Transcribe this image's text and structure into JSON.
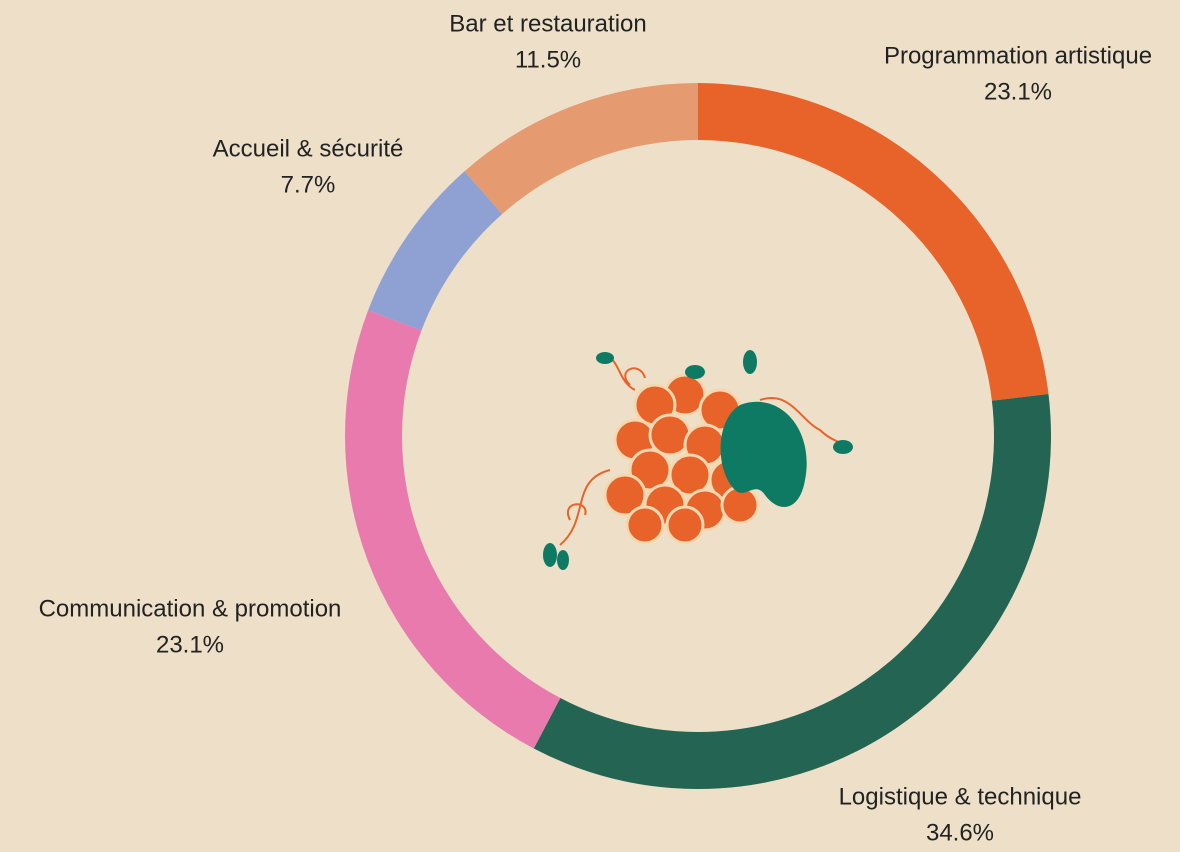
{
  "chart_data": {
    "type": "donut",
    "categories": [
      "Programmation artistique",
      "Logistique & technique",
      "Communication & promotion",
      "Accueil & sécurité",
      "Bar et restauration"
    ],
    "values": [
      23.1,
      34.6,
      23.1,
      7.7,
      11.5
    ],
    "value_labels": [
      "23.1%",
      "34.6%",
      "23.1%",
      "7.7%",
      "11.5%"
    ],
    "colors": [
      "#e8632a",
      "#236452",
      "#e87aae",
      "#8fa1d3",
      "#e59a70"
    ]
  }
}
